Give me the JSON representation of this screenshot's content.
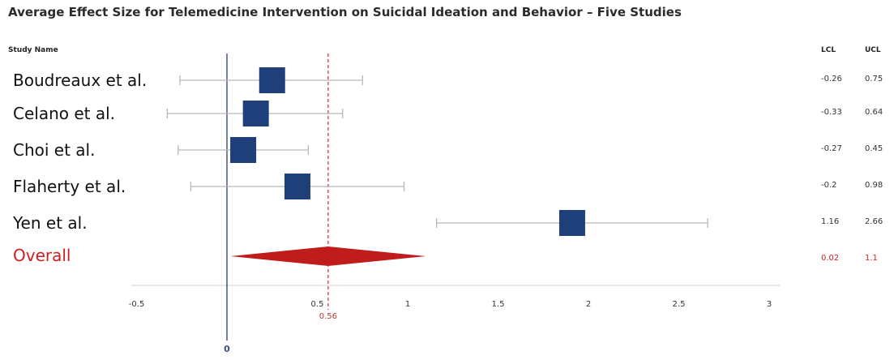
{
  "chart_data": {
    "type": "forest",
    "title": "Average Effect Size for Telemedicine Intervention on Suicidal Ideation and Behavior – Five Studies",
    "column_headers": {
      "study": "Study Name",
      "lcl": "LCL",
      "ucl": "UCL"
    },
    "studies": [
      {
        "name": "Boudreaux et al.",
        "estimate": 0.25,
        "lcl": -0.26,
        "ucl": 0.75,
        "lcl_label": "-0.26",
        "ucl_label": "0.75"
      },
      {
        "name": "Celano et al.",
        "estimate": 0.16,
        "lcl": -0.33,
        "ucl": 0.64,
        "lcl_label": "-0.33",
        "ucl_label": "0.64"
      },
      {
        "name": "Choi et al.",
        "estimate": 0.09,
        "lcl": -0.27,
        "ucl": 0.45,
        "lcl_label": "-0.27",
        "ucl_label": "0.45"
      },
      {
        "name": "Flaherty et al.",
        "estimate": 0.39,
        "lcl": -0.2,
        "ucl": 0.98,
        "lcl_label": "-0.2",
        "ucl_label": "0.98"
      },
      {
        "name": "Yen et al.",
        "estimate": 1.91,
        "lcl": 1.16,
        "ucl": 2.66,
        "lcl_label": "1.16",
        "ucl_label": "2.66"
      }
    ],
    "overall": {
      "name": "Overall",
      "estimate": 0.56,
      "lcl": 0.02,
      "ucl": 1.1,
      "lcl_label": "0.02",
      "ucl_label": "1.1"
    },
    "x_ticks": [
      "-0.5",
      "0.5",
      "1",
      "1.5",
      "2",
      "2.5",
      "3"
    ],
    "xlim": [
      -0.5,
      3
    ],
    "null_line": {
      "value": 0,
      "label": "0"
    },
    "reference_line": {
      "value": 0.56,
      "label": "0.56"
    },
    "colors": {
      "study_box": "#1f3f7a",
      "overall_diamond": "#c01c1c",
      "ci_line": "#b8b8b8",
      "null_line": "#2a3f6e",
      "reference_line": "#cc2b2b",
      "overall_text": "#cc1f1f"
    }
  }
}
